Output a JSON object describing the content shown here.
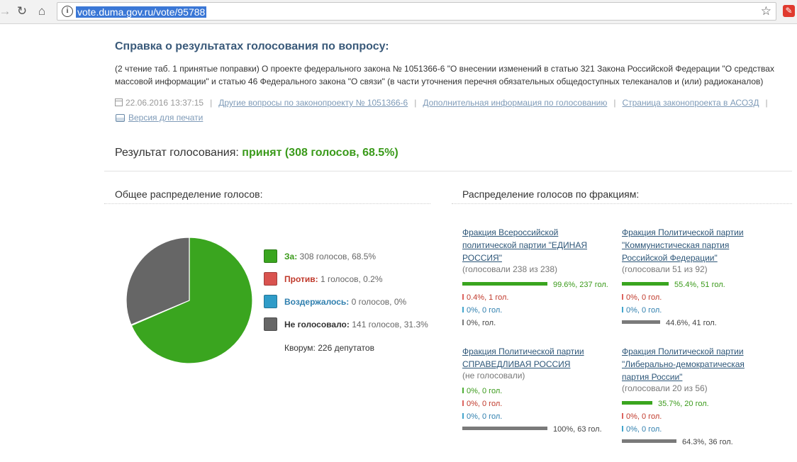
{
  "browser": {
    "url": "vote.duma.gov.ru/vote/95788"
  },
  "page": {
    "title": "Справка о результатах голосования по вопросу:",
    "description": "(2 чтение таб. 1 принятые поправки) О проекте федерального закона № 1051366-6 \"О внесении изменений в статью 321 Закона Российской Федерации \"О средствах массовой информации\" и статью 46 Федерального закона \"О связи\" (в части уточнения перечня обязательных общедоступных телеканалов и (или) радиоканалов)",
    "datetime": "22.06.2016 13:37:15",
    "links": [
      "Другие вопросы по законопроекту № 1051366-6",
      "Дополнительная информация по голосованию",
      "Страница законопроекта в АСОЗД"
    ],
    "print_link": "Версия для печати",
    "result_label": "Результат голосования:",
    "result_value": "принят (308 голосов, 68.5%)",
    "overall_heading": "Общее распределение голосов:",
    "factions_heading": "Распределение голосов по фракциям:",
    "quorum": "Кворум: 226 депутатов"
  },
  "colors": {
    "yes": "#3aa51f",
    "no": "#d9534f",
    "abstain": "#2f9cc8",
    "not_voted": "#666666"
  },
  "legend": [
    {
      "label": "За:",
      "value": "308 голосов, 68.5%"
    },
    {
      "label": "Против:",
      "value": "1 голосов, 0.2%"
    },
    {
      "label": "Воздержалось:",
      "value": "0 голосов, 0%"
    },
    {
      "label": "Не голосовало:",
      "value": "141 голосов, 31.3%"
    }
  ],
  "chart_data": {
    "type": "pie",
    "categories": [
      "За",
      "Против",
      "Воздержалось",
      "Не голосовало"
    ],
    "values": [
      68.5,
      0.2,
      0,
      31.3
    ]
  },
  "factions": [
    {
      "name": "Фракция Всероссийской политической партии \"ЕДИНАЯ РОССИЯ\"",
      "sub": "(голосовали 238 из 238)",
      "yes": {
        "pct": 99.6,
        "text": "99.6%, 237 гол."
      },
      "no": {
        "pct": 0.4,
        "text": "0.4%, 1 гол."
      },
      "abstain": {
        "pct": 0,
        "text": "0%, 0 гол."
      },
      "not_voted": {
        "pct": 0,
        "text": "0%, гол."
      }
    },
    {
      "name": "Фракция Политической партии \"Коммунистическая партия Российской Федерации\"",
      "sub": "(голосовали 51 из 92)",
      "yes": {
        "pct": 55.4,
        "text": "55.4%, 51 гол."
      },
      "no": {
        "pct": 0,
        "text": "0%, 0 гол."
      },
      "abstain": {
        "pct": 0,
        "text": "0%, 0 гол."
      },
      "not_voted": {
        "pct": 44.6,
        "text": "44.6%, 41 гол."
      }
    },
    {
      "name": "Фракция Политической партии СПРАВЕДЛИВАЯ РОССИЯ",
      "sub": "(не голосовали)",
      "yes": {
        "pct": 0,
        "text": "0%, 0 гол."
      },
      "no": {
        "pct": 0,
        "text": "0%, 0 гол."
      },
      "abstain": {
        "pct": 0,
        "text": "0%, 0 гол."
      },
      "not_voted": {
        "pct": 100,
        "text": "100%, 63 гол."
      }
    },
    {
      "name": "Фракция Политической партии \"Либерально-демократическая партия России\"",
      "sub": "(голосовали 20 из 56)",
      "yes": {
        "pct": 35.7,
        "text": "35.7%, 20 гол."
      },
      "no": {
        "pct": 0,
        "text": "0%, 0 гол."
      },
      "abstain": {
        "pct": 0,
        "text": "0%, 0 гол."
      },
      "not_voted": {
        "pct": 64.3,
        "text": "64.3%, 36 гол."
      }
    }
  ]
}
